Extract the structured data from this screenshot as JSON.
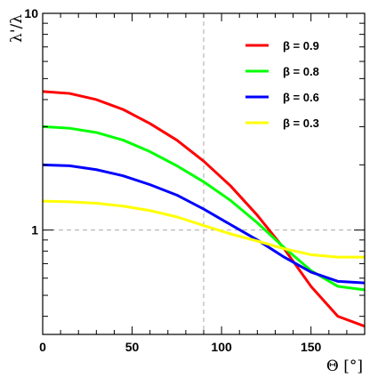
{
  "chart_data": {
    "type": "line",
    "title": "",
    "xlabel": "Θ [°]",
    "ylabel": "λ'/λ",
    "xlim": [
      0,
      180
    ],
    "ylim": [
      0.33,
      10
    ],
    "yscale": "log",
    "grid": "dashed reference lines at x=90 and y=1",
    "legend_position": "top-right",
    "x_ticks": [
      0,
      50,
      100,
      150
    ],
    "y_ticks": [
      1,
      10
    ],
    "series": [
      {
        "name": "β = 0.9",
        "color": "#ff0000",
        "points": [
          [
            0,
            4.36
          ],
          [
            15,
            4.27
          ],
          [
            30,
            4.0
          ],
          [
            45,
            3.6
          ],
          [
            60,
            3.1
          ],
          [
            75,
            2.6
          ],
          [
            90,
            2.08
          ],
          [
            105,
            1.6
          ],
          [
            120,
            1.17
          ],
          [
            135,
            0.82
          ],
          [
            150,
            0.55
          ],
          [
            165,
            0.4
          ],
          [
            180,
            0.36
          ]
        ]
      },
      {
        "name": "β = 0.8",
        "color": "#00ff00",
        "points": [
          [
            0,
            3.0
          ],
          [
            15,
            2.95
          ],
          [
            30,
            2.82
          ],
          [
            45,
            2.6
          ],
          [
            60,
            2.3
          ],
          [
            75,
            1.98
          ],
          [
            90,
            1.67
          ],
          [
            105,
            1.37
          ],
          [
            120,
            1.08
          ],
          [
            135,
            0.83
          ],
          [
            150,
            0.65
          ],
          [
            165,
            0.55
          ],
          [
            180,
            0.53
          ]
        ]
      },
      {
        "name": "β = 0.6",
        "color": "#0000ff",
        "points": [
          [
            0,
            2.0
          ],
          [
            15,
            1.98
          ],
          [
            30,
            1.9
          ],
          [
            45,
            1.78
          ],
          [
            60,
            1.62
          ],
          [
            75,
            1.45
          ],
          [
            90,
            1.25
          ],
          [
            105,
            1.06
          ],
          [
            120,
            0.9
          ],
          [
            135,
            0.75
          ],
          [
            150,
            0.64
          ],
          [
            165,
            0.58
          ],
          [
            180,
            0.57
          ]
        ]
      },
      {
        "name": "β = 0.3",
        "color": "#ffff00",
        "points": [
          [
            0,
            1.36
          ],
          [
            15,
            1.35
          ],
          [
            30,
            1.33
          ],
          [
            45,
            1.29
          ],
          [
            60,
            1.23
          ],
          [
            75,
            1.15
          ],
          [
            90,
            1.05
          ],
          [
            105,
            0.96
          ],
          [
            120,
            0.89
          ],
          [
            135,
            0.82
          ],
          [
            150,
            0.77
          ],
          [
            165,
            0.75
          ],
          [
            180,
            0.75
          ]
        ]
      }
    ]
  }
}
